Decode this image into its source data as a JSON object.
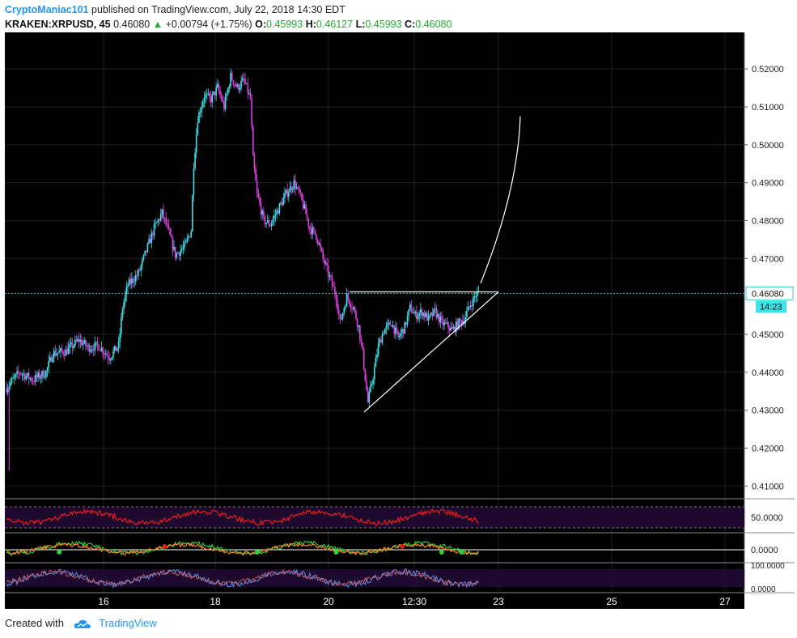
{
  "header": {
    "author": "CryptoManiac101",
    "published": " published on TradingView.com, July 22, 2018 14:30 EDT",
    "symbol": "KRAKEN:XRPUSD, 45",
    "last": "0.46080",
    "change": "+0.00794 (+1.75%)",
    "o_label": "O:",
    "o_value": "0.45993",
    "h_label": "H:",
    "h_value": "0.46127",
    "l_label": "L:",
    "l_value": "0.45993",
    "c_label": "C:",
    "c_value": "0.46080"
  },
  "footer": {
    "created_with": "Created with",
    "brand": "TradingView"
  },
  "colors": {
    "up": "#40e0e8",
    "down": "#e040e0",
    "rsi": "#e31a1c",
    "stoch_k": "#5b8de8",
    "stoch_d": "#c06070",
    "drawing": "#ffffff"
  },
  "chart_data": {
    "type": "candlestick",
    "y_ticks": [
      "0.52000",
      "0.51000",
      "0.50000",
      "0.49000",
      "0.48000",
      "0.47000",
      "0.45000",
      "0.44000",
      "0.43000",
      "0.42000",
      "0.41000"
    ],
    "ylim": [
      0.4075,
      0.5275
    ],
    "x_ticks": [
      "16",
      "18",
      "20",
      "12:30",
      "23",
      "25",
      "27"
    ],
    "price_label": "0.46080",
    "countdown_label": "14:23",
    "close_price": 0.4608,
    "candle_close_path": [
      [
        0,
        0.436
      ],
      [
        10,
        0.44
      ],
      [
        20,
        0.438
      ],
      [
        30,
        0.44
      ],
      [
        35,
        0.445
      ],
      [
        45,
        0.4455
      ],
      [
        55,
        0.4485
      ],
      [
        62,
        0.4465
      ],
      [
        70,
        0.447
      ],
      [
        78,
        0.444
      ],
      [
        85,
        0.447
      ],
      [
        88,
        0.457
      ],
      [
        92,
        0.463
      ],
      [
        100,
        0.466
      ],
      [
        105,
        0.471
      ],
      [
        112,
        0.478
      ],
      [
        118,
        0.482
      ],
      [
        122,
        0.478
      ],
      [
        128,
        0.471
      ],
      [
        135,
        0.473
      ],
      [
        140,
        0.4775
      ],
      [
        142,
        0.495
      ],
      [
        145,
        0.507
      ],
      [
        150,
        0.513
      ],
      [
        155,
        0.512
      ],
      [
        160,
        0.515
      ],
      [
        165,
        0.51
      ],
      [
        170,
        0.518
      ],
      [
        175,
        0.515
      ],
      [
        180,
        0.517
      ],
      [
        185,
        0.512
      ],
      [
        187,
        0.496
      ],
      [
        190,
        0.487
      ],
      [
        195,
        0.48
      ],
      [
        200,
        0.479
      ],
      [
        206,
        0.483
      ],
      [
        212,
        0.487
      ],
      [
        218,
        0.49
      ],
      [
        222,
        0.487
      ],
      [
        226,
        0.483
      ],
      [
        230,
        0.478
      ],
      [
        235,
        0.476
      ],
      [
        240,
        0.47
      ],
      [
        245,
        0.465
      ],
      [
        250,
        0.46
      ],
      [
        253,
        0.453
      ],
      [
        258,
        0.46
      ],
      [
        263,
        0.457
      ],
      [
        267,
        0.452
      ],
      [
        270,
        0.445
      ],
      [
        274,
        0.432
      ],
      [
        278,
        0.439
      ],
      [
        282,
        0.447
      ],
      [
        286,
        0.451
      ],
      [
        292,
        0.453
      ],
      [
        297,
        0.449
      ],
      [
        302,
        0.452
      ],
      [
        306,
        0.457
      ],
      [
        310,
        0.455
      ],
      [
        315,
        0.456
      ],
      [
        320,
        0.454
      ],
      [
        325,
        0.456
      ],
      [
        330,
        0.453
      ],
      [
        335,
        0.452
      ],
      [
        338,
        0.451
      ],
      [
        343,
        0.453
      ],
      [
        347,
        0.454
      ],
      [
        352,
        0.458
      ],
      [
        356,
        0.4605
      ],
      [
        358,
        0.4608
      ]
    ],
    "drawings": {
      "triangle_resistance": 0.4612,
      "triangle_low": 0.4295,
      "curve_top": 0.5075,
      "curve_bottom": 0.4635
    },
    "indicators": {
      "rsi_label": "50.0000",
      "macd_label": "0.0000",
      "stoch_labels": [
        "100.0000",
        "0.0000"
      ]
    }
  }
}
